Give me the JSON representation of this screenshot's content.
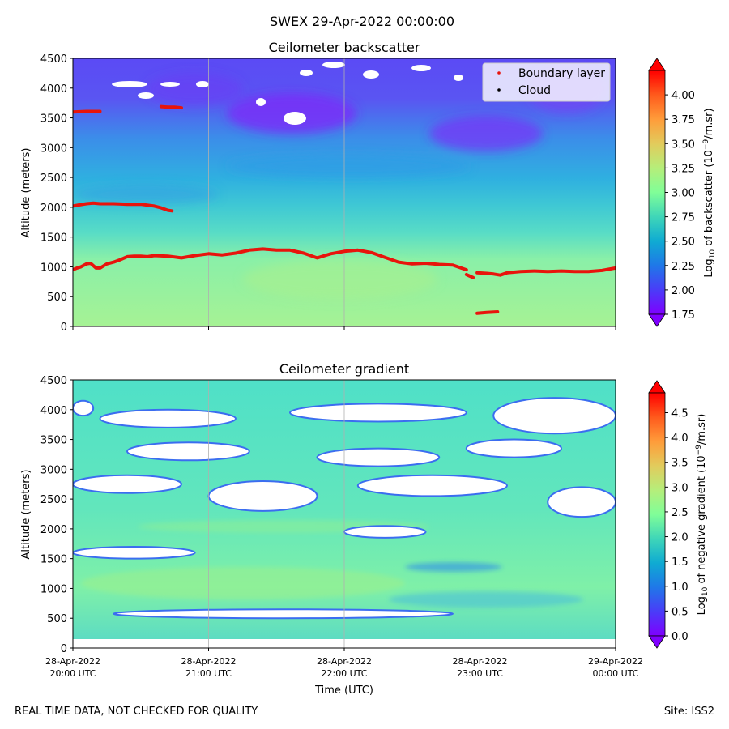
{
  "figure": {
    "title": "SWEX 29-Apr-2022 00:00:00",
    "footer_left": "REAL TIME DATA, NOT CHECKED FOR QUALITY",
    "footer_right": "Site: ISS2",
    "xlabel": "Time (UTC)",
    "x_ticks": [
      {
        "line1": "28-Apr-2022",
        "line2": "20:00 UTC",
        "hours": 0
      },
      {
        "line1": "28-Apr-2022",
        "line2": "21:00 UTC",
        "hours": 1
      },
      {
        "line1": "28-Apr-2022",
        "line2": "22:00 UTC",
        "hours": 2
      },
      {
        "line1": "28-Apr-2022",
        "line2": "23:00 UTC",
        "hours": 3
      },
      {
        "line1": "29-Apr-2022",
        "line2": "00:00 UTC",
        "hours": 4
      }
    ]
  },
  "colors": {
    "boundary_layer": "#e8140c",
    "cloud": "#000000",
    "gridline": "#b0b0b0"
  },
  "chart_data": [
    {
      "type": "heatmap",
      "title": "Ceilometer backscatter",
      "ylabel": "Altitude (meters)",
      "xlim_hours": [
        0,
        4
      ],
      "ylim": [
        0,
        4500
      ],
      "y_ticks": [
        0,
        500,
        1000,
        1500,
        2000,
        2500,
        3000,
        3500,
        4000,
        4500
      ],
      "colorbar": {
        "label_prefix": "Log",
        "label_sub": "10",
        "label_mid": " of backscatter (10",
        "label_sup": "−9",
        "label_suffix": "/m.sr)",
        "range": [
          1.75,
          4.25
        ],
        "ticks": [
          "1.75",
          "2.00",
          "2.25",
          "2.50",
          "2.75",
          "3.00",
          "3.25",
          "3.50",
          "3.75",
          "4.00"
        ]
      },
      "legend": {
        "position": "top-right",
        "entries": [
          {
            "label": "Boundary layer",
            "color": "#e8140c"
          },
          {
            "label": "Cloud",
            "color": "#000000"
          }
        ]
      },
      "series": [
        {
          "name": "Boundary layer",
          "segments": [
            {
              "x": [
                0.0,
                0.03,
                0.06,
                0.1,
                0.13,
                0.17,
                0.2,
                0.25,
                0.3,
                0.35,
                0.4,
                0.45,
                0.5,
                0.55,
                0.6,
                0.7,
                0.8,
                0.9,
                1.0,
                1.1,
                1.2,
                1.3,
                1.4,
                1.5,
                1.6,
                1.7,
                1.8,
                1.9,
                2.0,
                2.1,
                2.2,
                2.3,
                2.4,
                2.5,
                2.6,
                2.7,
                2.8,
                2.9
              ],
              "y": [
                950,
                980,
                1000,
                1050,
                1060,
                980,
                980,
                1050,
                1080,
                1120,
                1170,
                1180,
                1180,
                1170,
                1190,
                1180,
                1150,
                1190,
                1220,
                1200,
                1230,
                1280,
                1300,
                1280,
                1280,
                1230,
                1150,
                1220,
                1260,
                1280,
                1240,
                1160,
                1080,
                1050,
                1060,
                1040,
                1030,
                950
              ]
            },
            {
              "x": [
                2.9,
                2.92,
                2.95
              ],
              "y": [
                870,
                850,
                820
              ]
            },
            {
              "x": [
                2.98,
                3.05,
                3.1,
                3.15,
                3.2,
                3.3,
                3.4,
                3.5,
                3.6,
                3.7,
                3.8,
                3.9,
                4.0
              ],
              "y": [
                900,
                890,
                880,
                860,
                900,
                920,
                930,
                920,
                930,
                920,
                920,
                940,
                980
              ]
            },
            {
              "x": [
                0.0,
                0.05,
                0.1,
                0.15,
                0.2,
                0.3,
                0.4,
                0.5,
                0.6,
                0.65,
                0.7,
                0.73
              ],
              "y": [
                2020,
                2040,
                2060,
                2070,
                2060,
                2060,
                2050,
                2050,
                2020,
                1990,
                1950,
                1940
              ]
            },
            {
              "x": [
                0.0,
                0.1,
                0.2
              ],
              "y": [
                3600,
                3610,
                3610
              ]
            },
            {
              "x": [
                0.65,
                0.7,
                0.75,
                0.8
              ],
              "y": [
                3690,
                3680,
                3680,
                3670
              ]
            },
            {
              "x": [
                2.98,
                3.05,
                3.13
              ],
              "y": [
                220,
                235,
                245
              ]
            }
          ]
        },
        {
          "name": "Cloud",
          "segments": []
        }
      ]
    },
    {
      "type": "heatmap",
      "title": "Ceilometer gradient",
      "ylabel": "Altitude (meters)",
      "xlim_hours": [
        0,
        4
      ],
      "ylim": [
        0,
        4500
      ],
      "y_ticks": [
        0,
        500,
        1000,
        1500,
        2000,
        2500,
        3000,
        3500,
        4000,
        4500
      ],
      "colorbar": {
        "label_prefix": "Log",
        "label_sub": "10",
        "label_mid": " of negative gradient (10",
        "label_sup": "−9",
        "label_suffix": "/m.sr)",
        "range": [
          0.0,
          4.9
        ],
        "ticks": [
          "0.0",
          "0.5",
          "1.0",
          "1.5",
          "2.0",
          "2.5",
          "3.0",
          "3.5",
          "4.0",
          "4.5"
        ]
      },
      "white_gaps": [
        {
          "x": [
            0.0,
            0.9
          ],
          "y": [
            1500,
            1700
          ]
        },
        {
          "x": [
            0.3,
            2.8
          ],
          "y": [
            500,
            650
          ]
        },
        {
          "x": [
            0.0,
            0.15
          ],
          "y": [
            3900,
            4150
          ]
        },
        {
          "x": [
            0.2,
            1.2
          ],
          "y": [
            3700,
            4000
          ]
        },
        {
          "x": [
            1.6,
            2.9
          ],
          "y": [
            3800,
            4100
          ]
        },
        {
          "x": [
            3.1,
            4.0
          ],
          "y": [
            3600,
            4200
          ]
        },
        {
          "x": [
            0.0,
            0.8
          ],
          "y": [
            2600,
            2900
          ]
        },
        {
          "x": [
            1.0,
            1.8
          ],
          "y": [
            2300,
            2800
          ]
        },
        {
          "x": [
            2.1,
            3.2
          ],
          "y": [
            2550,
            2900
          ]
        },
        {
          "x": [
            3.5,
            4.0
          ],
          "y": [
            2200,
            2700
          ]
        },
        {
          "x": [
            0.4,
            1.3
          ],
          "y": [
            3150,
            3450
          ]
        },
        {
          "x": [
            1.8,
            2.7
          ],
          "y": [
            3050,
            3350
          ]
        },
        {
          "x": [
            2.9,
            3.6
          ],
          "y": [
            3200,
            3500
          ]
        },
        {
          "x": [
            2.0,
            2.6
          ],
          "y": [
            1850,
            2050
          ]
        }
      ]
    }
  ]
}
